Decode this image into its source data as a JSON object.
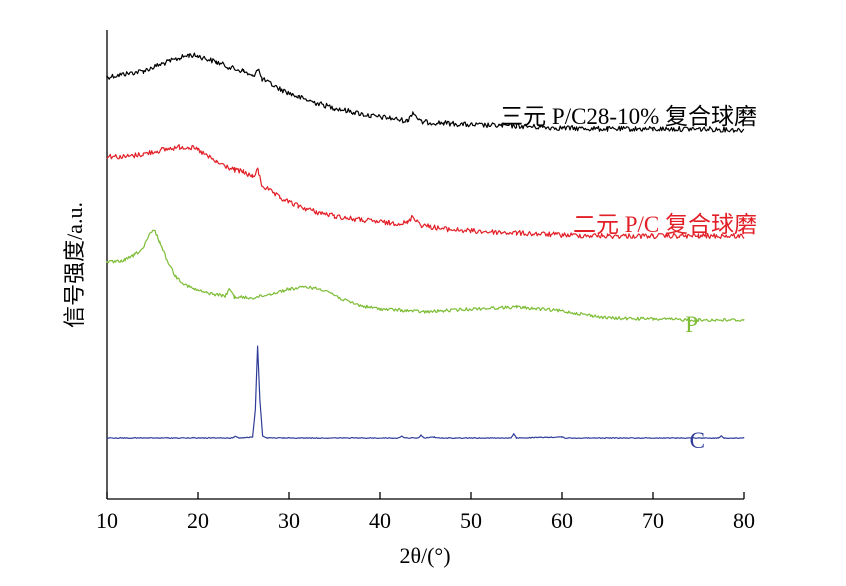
{
  "chart_data": {
    "type": "line",
    "xlabel": "2θ/(°)",
    "ylabel": "信号强度/a.u.",
    "xlim": [
      10,
      80
    ],
    "xticks": [
      "10",
      "20",
      "30",
      "40",
      "50",
      "60",
      "70",
      "80"
    ],
    "y_ticks_shown": false,
    "grid": false,
    "legend": "none; series labeled inline at right end of each curve",
    "series": [
      {
        "name": "三元 P/C28-10% 复合球磨",
        "color": "#000000",
        "points": [
          [
            10,
            77
          ],
          [
            12,
            74
          ],
          [
            14,
            71
          ],
          [
            16,
            64
          ],
          [
            18,
            58
          ],
          [
            19,
            55
          ],
          [
            20,
            56
          ],
          [
            22,
            62
          ],
          [
            24,
            69
          ],
          [
            25,
            71
          ],
          [
            26,
            77
          ],
          [
            26.6,
            68
          ],
          [
            27,
            79
          ],
          [
            29,
            89
          ],
          [
            31,
            97
          ],
          [
            33,
            103
          ],
          [
            35,
            108
          ],
          [
            37,
            112
          ],
          [
            39,
            116
          ],
          [
            41,
            118
          ],
          [
            43,
            121
          ],
          [
            43.6,
            112
          ],
          [
            44.5,
            122
          ],
          [
            47,
            123
          ],
          [
            50,
            125
          ],
          [
            55,
            126
          ],
          [
            60,
            128
          ],
          [
            65,
            129
          ],
          [
            70,
            129
          ],
          [
            75,
            129
          ],
          [
            80,
            130
          ]
        ]
      },
      {
        "name": "二元 P/C 复合球磨",
        "color": "#e21e26",
        "points": [
          [
            10,
            156
          ],
          [
            12,
            157
          ],
          [
            14,
            154
          ],
          [
            16,
            150
          ],
          [
            18,
            147
          ],
          [
            19,
            147
          ],
          [
            20,
            150
          ],
          [
            22,
            162
          ],
          [
            24,
            170
          ],
          [
            25,
            172
          ],
          [
            26,
            177
          ],
          [
            26.6,
            170
          ],
          [
            27,
            185
          ],
          [
            29,
            198
          ],
          [
            31,
            206
          ],
          [
            33,
            212
          ],
          [
            35,
            216
          ],
          [
            37,
            219
          ],
          [
            39,
            221
          ],
          [
            41,
            223
          ],
          [
            43,
            223
          ],
          [
            43.6,
            216
          ],
          [
            44.5,
            225
          ],
          [
            47,
            229
          ],
          [
            50,
            231
          ],
          [
            55,
            233
          ],
          [
            60,
            235
          ],
          [
            65,
            236
          ],
          [
            70,
            236
          ],
          [
            75,
            236
          ],
          [
            80,
            236
          ]
        ]
      },
      {
        "name": "P",
        "color": "#7cbd35",
        "points": [
          [
            10,
            262
          ],
          [
            11,
            262
          ],
          [
            12,
            260
          ],
          [
            13,
            255
          ],
          [
            14,
            248
          ],
          [
            14.7,
            234
          ],
          [
            15.2,
            230
          ],
          [
            15.8,
            242
          ],
          [
            16.5,
            258
          ],
          [
            17.5,
            276
          ],
          [
            18.5,
            284
          ],
          [
            19.5,
            289
          ],
          [
            21,
            293
          ],
          [
            23,
            296
          ],
          [
            23.5,
            289
          ],
          [
            24,
            297
          ],
          [
            26,
            298
          ],
          [
            28,
            294
          ],
          [
            30,
            289
          ],
          [
            32,
            287
          ],
          [
            34,
            290
          ],
          [
            36,
            300
          ],
          [
            38,
            306
          ],
          [
            40,
            309
          ],
          [
            42,
            310
          ],
          [
            45,
            312
          ],
          [
            50,
            309
          ],
          [
            55,
            307
          ],
          [
            60,
            311
          ],
          [
            65,
            318
          ],
          [
            70,
            319
          ],
          [
            75,
            320
          ],
          [
            80,
            320
          ]
        ]
      },
      {
        "name": "C",
        "color": "#2e3c98",
        "points": [
          [
            10,
            438
          ],
          [
            23.8,
            438
          ],
          [
            24.1,
            436
          ],
          [
            24.5,
            438
          ],
          [
            26.0,
            437
          ],
          [
            26.3,
            410
          ],
          [
            26.55,
            346
          ],
          [
            26.8,
            400
          ],
          [
            27.1,
            436
          ],
          [
            27.5,
            438
          ],
          [
            42.1,
            438
          ],
          [
            42.4,
            436
          ],
          [
            42.7,
            438
          ],
          [
            44.2,
            438
          ],
          [
            44.5,
            435
          ],
          [
            44.8,
            438
          ],
          [
            46.0,
            437
          ],
          [
            46.3,
            438
          ],
          [
            54.4,
            438
          ],
          [
            54.7,
            434
          ],
          [
            55.0,
            438
          ],
          [
            60.0,
            437
          ],
          [
            60.3,
            438
          ],
          [
            77.2,
            438
          ],
          [
            77.5,
            436
          ],
          [
            77.8,
            438
          ],
          [
            80,
            438
          ]
        ]
      }
    ]
  }
}
